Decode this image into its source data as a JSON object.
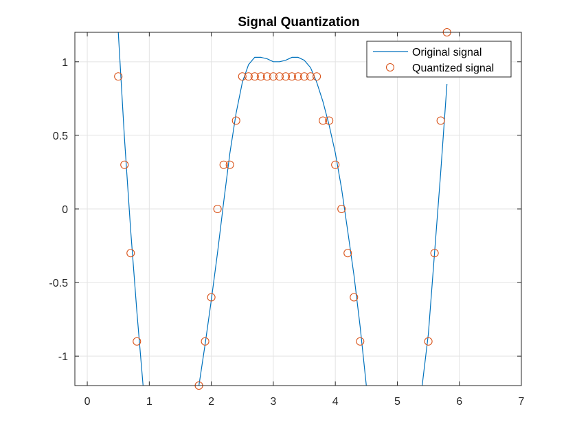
{
  "chart_data": {
    "type": "line",
    "title": "Signal Quantization",
    "xlabel": "",
    "ylabel": "",
    "xlim": [
      -0.2,
      7
    ],
    "ylim": [
      -1.2,
      1.2
    ],
    "xticks": [
      0,
      1,
      2,
      3,
      4,
      5,
      6,
      7
    ],
    "xtick_labels": [
      "0",
      "1",
      "2",
      "3",
      "4",
      "5",
      "6",
      "7"
    ],
    "yticks": [
      -1,
      -0.5,
      0,
      0.5,
      1
    ],
    "ytick_labels": [
      "-1",
      "-0.5",
      "0",
      "0.5",
      "1"
    ],
    "grid": true,
    "legend_position": "top-right",
    "series": [
      {
        "name": "Original signal",
        "style": "line",
        "color": "#0072BD",
        "x": [
          0.5,
          0.6,
          0.7,
          0.8,
          0.9,
          1.8,
          1.9,
          2.0,
          2.1,
          2.2,
          2.3,
          2.4,
          2.5,
          2.6,
          2.7,
          2.8,
          2.9,
          3.0,
          3.1,
          3.2,
          3.3,
          3.4,
          3.5,
          3.6,
          3.7,
          3.8,
          3.9,
          4.0,
          4.1,
          4.2,
          4.3,
          4.4,
          4.5,
          5.4,
          5.5,
          5.6,
          5.7,
          5.8
        ],
        "y": [
          1.2,
          0.48,
          -0.15,
          -0.7,
          -1.2,
          -1.2,
          -0.92,
          -0.62,
          -0.3,
          0.05,
          0.38,
          0.65,
          0.86,
          0.98,
          1.03,
          1.03,
          1.02,
          1.0,
          1.0,
          1.01,
          1.03,
          1.03,
          1.01,
          0.96,
          0.86,
          0.73,
          0.57,
          0.38,
          0.14,
          -0.15,
          -0.45,
          -0.8,
          -1.2,
          -1.2,
          -0.85,
          -0.3,
          0.25,
          0.85
        ]
      },
      {
        "name": "Quantized signal",
        "style": "markers",
        "color": "#D95319",
        "x": [
          0.5,
          0.6,
          0.7,
          0.8,
          1.8,
          1.9,
          2.0,
          2.1,
          2.2,
          2.3,
          2.4,
          2.5,
          2.6,
          2.7,
          2.8,
          2.9,
          3.0,
          3.1,
          3.2,
          3.3,
          3.4,
          3.5,
          3.6,
          3.7,
          3.8,
          3.9,
          4.0,
          4.1,
          4.2,
          4.3,
          4.4,
          5.5,
          5.6,
          5.7,
          5.8
        ],
        "y": [
          0.9,
          0.3,
          -0.3,
          -0.9,
          -1.2,
          -0.9,
          -0.6,
          0.0,
          0.3,
          0.3,
          0.6,
          0.9,
          0.9,
          0.9,
          0.9,
          0.9,
          0.9,
          0.9,
          0.9,
          0.9,
          0.9,
          0.9,
          0.9,
          0.9,
          0.6,
          0.6,
          0.3,
          0.0,
          -0.3,
          -0.6,
          -0.9,
          -0.9,
          -0.3,
          0.6,
          1.2
        ]
      }
    ]
  }
}
